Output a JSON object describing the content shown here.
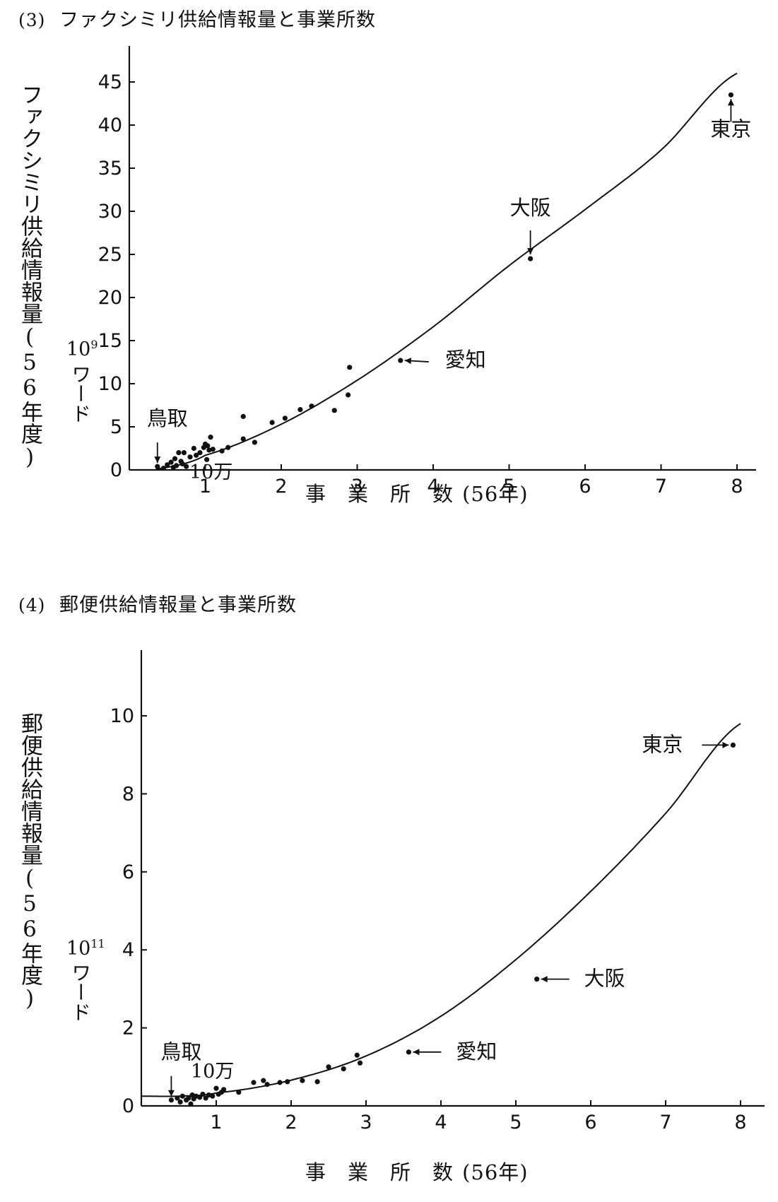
{
  "chart_data": [
    {
      "type": "scatter",
      "panel_label": "(3)",
      "title": "ファクシミリ供給情報量と事業所数",
      "ylabel": "ファクシミリ供給情報量(56年度)",
      "yunit_base": "10",
      "yunit_exp": "9",
      "yunit_word": "ワード",
      "xlabel_parts": [
        "事",
        "業",
        "所",
        "数",
        "(56年)"
      ],
      "xunit": "10万",
      "xlim": [
        0,
        8.2
      ],
      "ylim": [
        0,
        46
      ],
      "xticks": [
        1,
        2,
        3,
        4,
        5,
        6,
        7,
        8
      ],
      "yticks": [
        0,
        5,
        10,
        15,
        20,
        25,
        30,
        35,
        40,
        45
      ],
      "curve": {
        "description": "fitted curve",
        "points": [
          [
            0,
            0
          ],
          [
            0.5,
            0.3
          ],
          [
            1,
            1.7
          ],
          [
            2,
            5.3
          ],
          [
            3,
            10.4
          ],
          [
            4,
            16.6
          ],
          [
            5,
            23.7
          ],
          [
            6,
            30.2
          ],
          [
            7,
            37.1
          ],
          [
            8,
            46.0
          ]
        ]
      },
      "points": [
        [
          0.37,
          0.4
        ],
        [
          0.45,
          0.2
        ],
        [
          0.5,
          0.6
        ],
        [
          0.55,
          0.9
        ],
        [
          0.58,
          0.3
        ],
        [
          0.6,
          1.3
        ],
        [
          0.62,
          0.5
        ],
        [
          0.65,
          2.0
        ],
        [
          0.68,
          1.0
        ],
        [
          0.7,
          0.7
        ],
        [
          0.72,
          2.0
        ],
        [
          0.75,
          0.4
        ],
        [
          0.8,
          1.5
        ],
        [
          0.85,
          2.5
        ],
        [
          0.88,
          1.7
        ],
        [
          0.93,
          2.0
        ],
        [
          0.98,
          2.6
        ],
        [
          1.0,
          3.0
        ],
        [
          1.02,
          1.2
        ],
        [
          1.03,
          2.8
        ],
        [
          1.05,
          2.3
        ],
        [
          1.07,
          3.8
        ],
        [
          1.1,
          2.4
        ],
        [
          1.22,
          2.2
        ],
        [
          1.3,
          2.6
        ],
        [
          1.5,
          6.2
        ],
        [
          1.5,
          3.6
        ],
        [
          1.65,
          3.2
        ],
        [
          1.88,
          5.5
        ],
        [
          2.05,
          6.0
        ],
        [
          2.25,
          7.0
        ],
        [
          2.4,
          7.4
        ],
        [
          2.7,
          6.9
        ],
        [
          2.88,
          8.7
        ],
        [
          2.9,
          11.9
        ],
        [
          3.57,
          12.7
        ],
        [
          5.28,
          24.5
        ],
        [
          7.92,
          43.5
        ]
      ],
      "annotations": [
        {
          "label": "東京",
          "x": 7.92,
          "y": 43.5
        },
        {
          "label": "大阪",
          "x": 5.28,
          "y": 24.5
        },
        {
          "label": "愛知",
          "x": 3.57,
          "y": 12.7
        },
        {
          "label": "鳥取",
          "x": 0.37,
          "y": 0.4
        }
      ]
    },
    {
      "type": "scatter",
      "panel_label": "(4)",
      "title": "郵便供給情報量と事業所数",
      "ylabel": "郵便供給情報量(56年度)",
      "yunit_base": "10",
      "yunit_exp": "11",
      "yunit_word": "ワード",
      "xlabel_parts": [
        "事",
        "業",
        "所",
        "数",
        "(56年)"
      ],
      "xunit": "10万",
      "xlim": [
        0,
        8.2
      ],
      "ylim": [
        0,
        10.1
      ],
      "xticks": [
        1,
        2,
        3,
        4,
        5,
        6,
        7,
        8
      ],
      "yticks": [
        0,
        2,
        4,
        6,
        8,
        10
      ],
      "curve": {
        "description": "fitted curve",
        "points": [
          [
            0,
            0.25
          ],
          [
            0.5,
            0.25
          ],
          [
            1,
            0.33
          ],
          [
            2,
            0.66
          ],
          [
            3,
            1.28
          ],
          [
            4,
            2.3
          ],
          [
            5,
            3.75
          ],
          [
            6,
            5.5
          ],
          [
            7,
            7.5
          ],
          [
            8,
            9.8
          ]
        ]
      },
      "points": [
        [
          0.4,
          0.15
        ],
        [
          0.48,
          0.2
        ],
        [
          0.52,
          0.1
        ],
        [
          0.55,
          0.25
        ],
        [
          0.6,
          0.15
        ],
        [
          0.63,
          0.2
        ],
        [
          0.66,
          0.05
        ],
        [
          0.68,
          0.28
        ],
        [
          0.7,
          0.18
        ],
        [
          0.73,
          0.25
        ],
        [
          0.78,
          0.22
        ],
        [
          0.82,
          0.3
        ],
        [
          0.86,
          0.2
        ],
        [
          0.9,
          0.28
        ],
        [
          0.95,
          0.25
        ],
        [
          1.0,
          0.45
        ],
        [
          1.03,
          0.3
        ],
        [
          1.07,
          0.35
        ],
        [
          1.1,
          0.42
        ],
        [
          1.3,
          0.35
        ],
        [
          1.5,
          0.6
        ],
        [
          1.63,
          0.65
        ],
        [
          1.68,
          0.55
        ],
        [
          1.85,
          0.6
        ],
        [
          1.95,
          0.62
        ],
        [
          2.15,
          0.65
        ],
        [
          2.35,
          0.62
        ],
        [
          2.5,
          1.0
        ],
        [
          2.7,
          0.95
        ],
        [
          2.88,
          1.3
        ],
        [
          2.92,
          1.1
        ],
        [
          3.57,
          1.38
        ],
        [
          5.28,
          3.25
        ],
        [
          7.9,
          9.25
        ]
      ],
      "annotations": [
        {
          "label": "東京",
          "x": 7.9,
          "y": 9.25
        },
        {
          "label": "大阪",
          "x": 5.28,
          "y": 3.25
        },
        {
          "label": "愛知",
          "x": 3.57,
          "y": 1.38
        },
        {
          "label": "鳥取",
          "x": 0.4,
          "y": 0.15
        }
      ]
    }
  ]
}
